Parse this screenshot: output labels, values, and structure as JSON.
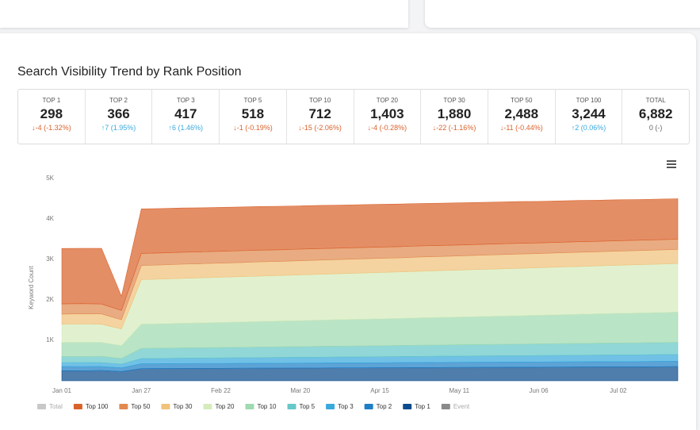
{
  "title": "Search Visibility Trend by Rank Position",
  "stats": [
    {
      "label": "TOP 1",
      "value": "298",
      "change": "-4 (-1.32%)",
      "trend": "down"
    },
    {
      "label": "TOP 2",
      "value": "366",
      "change": "7 (1.95%)",
      "trend": "up"
    },
    {
      "label": "TOP 3",
      "value": "417",
      "change": "6 (1.46%)",
      "trend": "up"
    },
    {
      "label": "TOP 5",
      "value": "518",
      "change": "-1 (-0.19%)",
      "trend": "down"
    },
    {
      "label": "TOP 10",
      "value": "712",
      "change": "-15 (-2.06%)",
      "trend": "down"
    },
    {
      "label": "TOP 20",
      "value": "1,403",
      "change": "-4 (-0.28%)",
      "trend": "down"
    },
    {
      "label": "TOP 30",
      "value": "1,880",
      "change": "-22 (-1.16%)",
      "trend": "down"
    },
    {
      "label": "TOP 50",
      "value": "2,488",
      "change": "-11 (-0.44%)",
      "trend": "down"
    },
    {
      "label": "TOP 100",
      "value": "3,244",
      "change": "2 (0.06%)",
      "trend": "up"
    },
    {
      "label": "TOTAL",
      "value": "6,882",
      "change": "0 (-)",
      "trend": "none"
    }
  ],
  "chart_data": {
    "type": "area",
    "stacked": true,
    "ylabel": "Keyword Count",
    "categories": [
      "Jan 01",
      null,
      null,
      null,
      "Jan 27",
      null,
      null,
      null,
      "Feb 22",
      null,
      null,
      null,
      "Mar 20",
      null,
      null,
      null,
      "Apr 15",
      null,
      null,
      null,
      "May 11",
      null,
      null,
      null,
      "Jun 06",
      null,
      null,
      null,
      "Jul 02",
      null,
      null,
      null
    ],
    "ylim": [
      0,
      5000
    ],
    "yticks": [
      {
        "value": 1000,
        "label": "1K"
      },
      {
        "value": 2000,
        "label": "2K"
      },
      {
        "value": 3000,
        "label": "3K"
      },
      {
        "value": 4000,
        "label": "4K"
      },
      {
        "value": 5000,
        "label": "5K"
      }
    ],
    "series": [
      {
        "name": "Total",
        "color": "#c8c8c8",
        "visible": false
      },
      {
        "name": "Top 100",
        "color": "#d9622b",
        "visible": true,
        "values": [
          1370,
          1365,
          1375,
          350,
          1100,
          1096,
          1093,
          1089,
          1085,
          1081,
          1078,
          1074,
          1070,
          1067,
          1063,
          1059,
          1056,
          1052,
          1048,
          1044,
          1041,
          1037,
          1033,
          1030,
          1026,
          1022,
          1019,
          1015,
          1011,
          1007,
          1004,
          1000
        ]
      },
      {
        "name": "Top 50",
        "color": "#e08a52",
        "visible": true,
        "values": [
          250,
          252,
          247,
          230,
          300,
          298,
          296,
          294,
          293,
          291,
          289,
          287,
          285,
          283,
          281,
          280,
          278,
          276,
          274,
          272,
          270,
          268,
          267,
          265,
          263,
          261,
          259,
          257,
          255,
          254,
          252,
          250
        ]
      },
      {
        "name": "Top 30",
        "color": "#f0c27c",
        "visible": true,
        "values": [
          250,
          248,
          253,
          230,
          350,
          348,
          352,
          349,
          351,
          350,
          353,
          348,
          350,
          352,
          349,
          351,
          350,
          348,
          352,
          350,
          349,
          351,
          350,
          353,
          349,
          350,
          352,
          348,
          351,
          350,
          349,
          350
        ]
      },
      {
        "name": "Top 20",
        "color": "#d6ebbd",
        "visible": true,
        "values": [
          450,
          455,
          448,
          410,
          1100,
          1104,
          1107,
          1111,
          1115,
          1119,
          1122,
          1126,
          1130,
          1133,
          1137,
          1141,
          1144,
          1148,
          1152,
          1156,
          1159,
          1163,
          1167,
          1170,
          1174,
          1178,
          1181,
          1185,
          1189,
          1193,
          1196,
          1200
        ]
      },
      {
        "name": "Top 10",
        "color": "#9fdab0",
        "visible": true,
        "values": [
          350,
          352,
          348,
          320,
          600,
          606,
          611,
          617,
          622,
          628,
          633,
          639,
          644,
          650,
          656,
          661,
          667,
          672,
          678,
          683,
          689,
          694,
          700,
          706,
          711,
          717,
          722,
          728,
          733,
          739,
          744,
          750
        ]
      },
      {
        "name": "Top 5",
        "color": "#67c8c8",
        "visible": true,
        "values": [
          150,
          149,
          152,
          138,
          250,
          252,
          254,
          256,
          257,
          259,
          261,
          263,
          265,
          267,
          269,
          270,
          272,
          274,
          276,
          278,
          280,
          282,
          283,
          285,
          287,
          289,
          291,
          293,
          295,
          296,
          298,
          300
        ]
      },
      {
        "name": "Top 3",
        "color": "#3aa9dc",
        "visible": true,
        "values": [
          100,
          102,
          100,
          92,
          130,
          131,
          133,
          134,
          136,
          137,
          139,
          140,
          142,
          143,
          145,
          146,
          148,
          149,
          151,
          152,
          154,
          155,
          157,
          158,
          160,
          161,
          163,
          164,
          166,
          167,
          169,
          170
        ]
      },
      {
        "name": "Top 2",
        "color": "#1f7fc6",
        "visible": true,
        "values": [
          100,
          101,
          99,
          90,
          120,
          120,
          121,
          121,
          121,
          122,
          122,
          123,
          123,
          123,
          124,
          124,
          124,
          125,
          125,
          126,
          126,
          126,
          127,
          127,
          127,
          128,
          128,
          129,
          129,
          129,
          130,
          130
        ]
      },
      {
        "name": "Top 1",
        "color": "#0b4c8c",
        "visible": true,
        "values": [
          250,
          248,
          252,
          230,
          300,
          302,
          304,
          306,
          307,
          309,
          311,
          313,
          315,
          317,
          319,
          320,
          322,
          324,
          326,
          328,
          330,
          332,
          333,
          335,
          337,
          339,
          341,
          343,
          345,
          346,
          348,
          350
        ]
      },
      {
        "name": "Event",
        "color": "#8a8a8a",
        "visible": false
      }
    ],
    "grid": false
  }
}
